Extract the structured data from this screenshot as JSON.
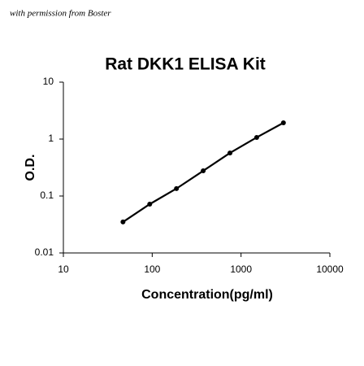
{
  "chart_data": {
    "type": "line",
    "watermark": "with permission from Boster",
    "title": "Rat DKK1 ELISA Kit",
    "x_label": "Concentration(pg/ml)",
    "y_label": "O.D.",
    "x": [
      46.875,
      93.75,
      187.5,
      375,
      750,
      1500,
      3000
    ],
    "series": [
      {
        "name": "Rat DKK1",
        "color": "#000000",
        "values": [
          0.035,
          0.072,
          0.135,
          0.277,
          0.57,
          1.07,
          1.93
        ]
      }
    ],
    "xlim": [
      10,
      10000
    ],
    "ylim": [
      0.01,
      10
    ],
    "xticks": [
      10,
      100,
      1000,
      10000
    ],
    "yticks": [
      0.01,
      0.1,
      1,
      10
    ],
    "xscale": "log",
    "yscale": "log",
    "grid": false
  }
}
